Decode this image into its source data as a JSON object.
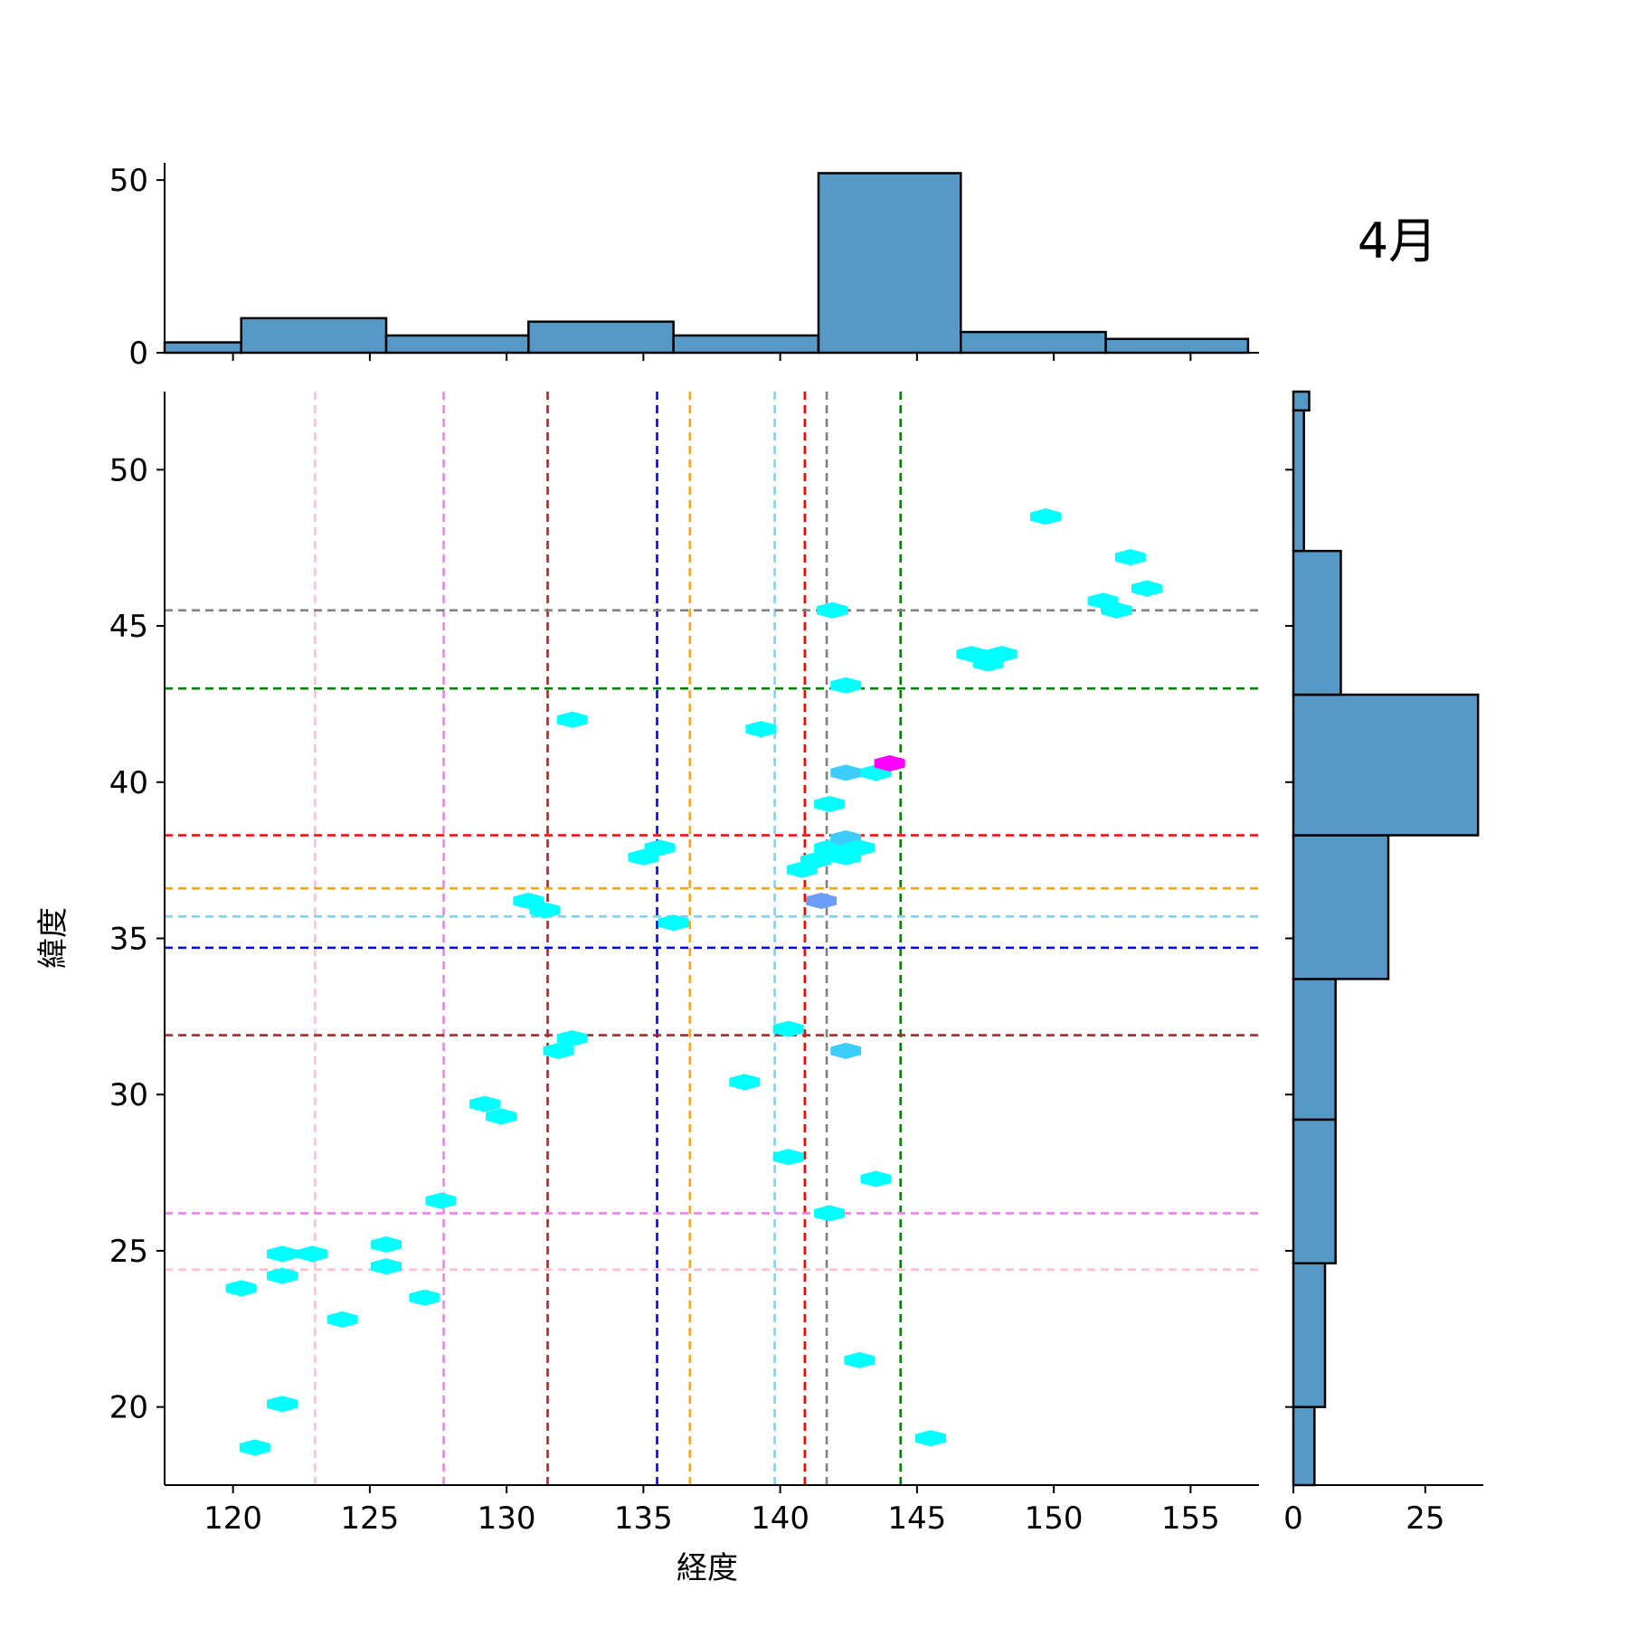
{
  "title": "4月",
  "chart_data": {
    "type": "hexbin-joint",
    "title": "4月",
    "xlabel": "経度",
    "ylabel": "緯度",
    "xlim": [
      117.5,
      157.5
    ],
    "ylim": [
      17.5,
      52.5
    ],
    "xticks": [
      120,
      125,
      130,
      135,
      140,
      145,
      150,
      155
    ],
    "yticks": [
      20,
      25,
      30,
      35,
      40,
      45,
      50
    ],
    "grid": false,
    "points": [
      {
        "x": 120.8,
        "y": 18.7,
        "count": 1
      },
      {
        "x": 121.8,
        "y": 20.1,
        "count": 1
      },
      {
        "x": 120.3,
        "y": 23.8,
        "count": 1
      },
      {
        "x": 121.8,
        "y": 24.2,
        "count": 1
      },
      {
        "x": 121.8,
        "y": 24.9,
        "count": 1
      },
      {
        "x": 122.9,
        "y": 24.9,
        "count": 1
      },
      {
        "x": 124.0,
        "y": 22.8,
        "count": 1
      },
      {
        "x": 125.6,
        "y": 24.5,
        "count": 1
      },
      {
        "x": 125.6,
        "y": 25.2,
        "count": 1
      },
      {
        "x": 127.0,
        "y": 23.5,
        "count": 1
      },
      {
        "x": 127.6,
        "y": 26.6,
        "count": 1
      },
      {
        "x": 129.2,
        "y": 29.7,
        "count": 1
      },
      {
        "x": 129.8,
        "y": 29.3,
        "count": 1
      },
      {
        "x": 131.9,
        "y": 31.4,
        "count": 1
      },
      {
        "x": 132.4,
        "y": 31.8,
        "count": 1
      },
      {
        "x": 130.8,
        "y": 36.2,
        "count": 1
      },
      {
        "x": 131.4,
        "y": 35.9,
        "count": 1
      },
      {
        "x": 132.4,
        "y": 42.0,
        "count": 1
      },
      {
        "x": 135.0,
        "y": 37.6,
        "count": 1
      },
      {
        "x": 135.6,
        "y": 37.9,
        "count": 1
      },
      {
        "x": 136.1,
        "y": 35.5,
        "count": 1
      },
      {
        "x": 138.7,
        "y": 30.4,
        "count": 1
      },
      {
        "x": 139.3,
        "y": 41.7,
        "count": 1
      },
      {
        "x": 140.3,
        "y": 32.1,
        "count": 1
      },
      {
        "x": 140.3,
        "y": 28.0,
        "count": 1
      },
      {
        "x": 140.8,
        "y": 37.2,
        "count": 1
      },
      {
        "x": 141.3,
        "y": 37.5,
        "count": 1
      },
      {
        "x": 141.5,
        "y": 36.2,
        "count": 3
      },
      {
        "x": 141.8,
        "y": 39.3,
        "count": 1
      },
      {
        "x": 141.8,
        "y": 37.9,
        "count": 1
      },
      {
        "x": 141.8,
        "y": 26.2,
        "count": 1
      },
      {
        "x": 141.9,
        "y": 45.5,
        "count": 1
      },
      {
        "x": 142.4,
        "y": 43.1,
        "count": 1
      },
      {
        "x": 142.4,
        "y": 40.3,
        "count": 2
      },
      {
        "x": 142.4,
        "y": 38.2,
        "count": 2
      },
      {
        "x": 142.4,
        "y": 37.6,
        "count": 1
      },
      {
        "x": 142.4,
        "y": 31.4,
        "count": 2
      },
      {
        "x": 142.9,
        "y": 37.9,
        "count": 1
      },
      {
        "x": 142.9,
        "y": 21.5,
        "count": 1
      },
      {
        "x": 143.5,
        "y": 40.3,
        "count": 1
      },
      {
        "x": 143.5,
        "y": 27.3,
        "count": 1
      },
      {
        "x": 144.0,
        "y": 40.6,
        "count": 5
      },
      {
        "x": 145.5,
        "y": 19.0,
        "count": 1
      },
      {
        "x": 147.0,
        "y": 44.1,
        "count": 1
      },
      {
        "x": 147.6,
        "y": 43.8,
        "count": 1
      },
      {
        "x": 148.1,
        "y": 44.1,
        "count": 1
      },
      {
        "x": 149.7,
        "y": 48.5,
        "count": 1
      },
      {
        "x": 151.8,
        "y": 45.8,
        "count": 1
      },
      {
        "x": 152.3,
        "y": 45.5,
        "count": 1
      },
      {
        "x": 152.8,
        "y": 47.2,
        "count": 1
      },
      {
        "x": 153.4,
        "y": 46.2,
        "count": 1
      }
    ],
    "vlines": [
      {
        "x": 123.0,
        "color": "#ffc0cb"
      },
      {
        "x": 127.7,
        "color": "#ee82ee"
      },
      {
        "x": 131.5,
        "color": "#a52a2a"
      },
      {
        "x": 135.5,
        "color": "#0000ff"
      },
      {
        "x": 136.7,
        "color": "#ffa500"
      },
      {
        "x": 139.8,
        "color": "#87ceeb"
      },
      {
        "x": 140.9,
        "color": "#ff0000"
      },
      {
        "x": 141.7,
        "color": "#808080"
      },
      {
        "x": 144.4,
        "color": "#008000"
      }
    ],
    "hlines": [
      {
        "y": 24.4,
        "color": "#ffc0cb"
      },
      {
        "y": 26.2,
        "color": "#ee82ee"
      },
      {
        "y": 31.9,
        "color": "#a52a2a"
      },
      {
        "y": 34.7,
        "color": "#0000ff"
      },
      {
        "y": 36.6,
        "color": "#ffa500"
      },
      {
        "y": 35.7,
        "color": "#87ceeb"
      },
      {
        "y": 38.3,
        "color": "#ff0000"
      },
      {
        "y": 45.5,
        "color": "#808080"
      },
      {
        "y": 43.0,
        "color": "#008000"
      }
    ],
    "x_histogram": {
      "yticks": [
        0,
        50
      ],
      "ylim": [
        0,
        55
      ],
      "bins": [
        {
          "from": 115.0,
          "to": 120.3,
          "count": 3
        },
        {
          "from": 120.3,
          "to": 125.6,
          "count": 10
        },
        {
          "from": 125.6,
          "to": 130.8,
          "count": 5
        },
        {
          "from": 130.8,
          "to": 136.1,
          "count": 9
        },
        {
          "from": 136.1,
          "to": 141.4,
          "count": 5
        },
        {
          "from": 141.4,
          "to": 146.6,
          "count": 52
        },
        {
          "from": 146.6,
          "to": 151.9,
          "count": 6
        },
        {
          "from": 151.9,
          "to": 157.1,
          "count": 4
        }
      ]
    },
    "y_histogram": {
      "xticks": [
        0,
        25
      ],
      "xlim": [
        0,
        36
      ],
      "bins": [
        {
          "from": 13.0,
          "to": 20.0,
          "count": 4
        },
        {
          "from": 20.0,
          "to": 24.6,
          "count": 6
        },
        {
          "from": 24.6,
          "to": 29.2,
          "count": 8
        },
        {
          "from": 29.2,
          "to": 33.7,
          "count": 8
        },
        {
          "from": 33.7,
          "to": 38.3,
          "count": 18
        },
        {
          "from": 38.3,
          "to": 42.8,
          "count": 35
        },
        {
          "from": 42.8,
          "to": 47.4,
          "count": 9
        },
        {
          "from": 47.4,
          "to": 51.9,
          "count": 2
        },
        {
          "from": 51.9,
          "to": 56.5,
          "count": 3
        }
      ]
    },
    "hex_colors": {
      "1": "#00ffff",
      "2": "#3dcdfb",
      "3": "#6d9cf8",
      "5": "#ff00ff"
    },
    "hist_color": "#5799c6"
  }
}
